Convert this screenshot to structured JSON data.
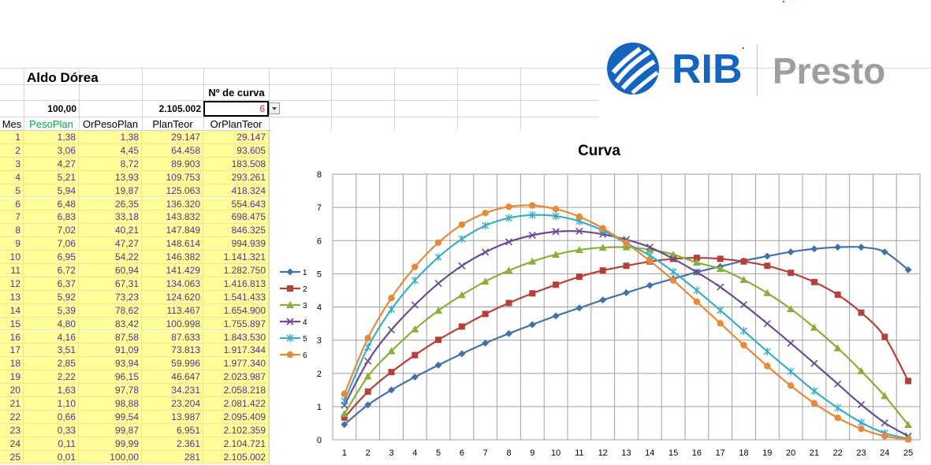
{
  "header": {
    "owner_name": "Aldo Dórea",
    "curve_label": "Nº de curva",
    "total_weight": "100,00",
    "total_plan": "2.105.002",
    "curve_number": "6"
  },
  "logo": {
    "rib": "RIB",
    "presto": "Presto",
    "brand_color": "#1565c0",
    "presto_color": "#9e9e9e"
  },
  "table": {
    "columns": [
      "Mes",
      "PesoPlan",
      "OrPesoPlan",
      "PlanTeor",
      "OrPlanTeor"
    ],
    "rows": [
      [
        "1",
        "1,38",
        "1,38",
        "29.147",
        "29.147"
      ],
      [
        "2",
        "3,06",
        "4,45",
        "64.458",
        "93.605"
      ],
      [
        "3",
        "4,27",
        "8,72",
        "89.903",
        "183.508"
      ],
      [
        "4",
        "5,21",
        "13,93",
        "109.753",
        "293.261"
      ],
      [
        "5",
        "5,94",
        "19,87",
        "125.063",
        "418.324"
      ],
      [
        "6",
        "6,48",
        "26,35",
        "136.320",
        "554.643"
      ],
      [
        "7",
        "6,83",
        "33,18",
        "143.832",
        "698.475"
      ],
      [
        "8",
        "7,02",
        "40,21",
        "147.849",
        "846.325"
      ],
      [
        "9",
        "7,06",
        "47,27",
        "148.614",
        "994.939"
      ],
      [
        "10",
        "6,95",
        "54,22",
        "146.382",
        "1.141.321"
      ],
      [
        "11",
        "6,72",
        "60,94",
        "141.429",
        "1.282.750"
      ],
      [
        "12",
        "6,37",
        "67,31",
        "134.063",
        "1.416.813"
      ],
      [
        "13",
        "5,92",
        "73,23",
        "124.620",
        "1.541.433"
      ],
      [
        "14",
        "5,39",
        "78,62",
        "113.467",
        "1.654.900"
      ],
      [
        "15",
        "4,80",
        "83,42",
        "100.998",
        "1.755.897"
      ],
      [
        "16",
        "4,16",
        "87,58",
        "87.633",
        "1.843.530"
      ],
      [
        "17",
        "3,51",
        "91,09",
        "73.813",
        "1.917.344"
      ],
      [
        "18",
        "2,85",
        "93,94",
        "59.996",
        "1.977.340"
      ],
      [
        "19",
        "2,22",
        "96,15",
        "46.647",
        "2.023.987"
      ],
      [
        "20",
        "1,63",
        "97,78",
        "34.231",
        "2.058.218"
      ],
      [
        "21",
        "1,10",
        "98,88",
        "23.204",
        "2.081.422"
      ],
      [
        "22",
        "0,66",
        "99,54",
        "13.987",
        "2.095.409"
      ],
      [
        "23",
        "0,33",
        "99,87",
        "6.951",
        "2.102.359"
      ],
      [
        "24",
        "0,11",
        "99,99",
        "2.361",
        "2.104.721"
      ],
      [
        "25",
        "0,01",
        "100,00",
        "281",
        "2.105.002"
      ]
    ]
  },
  "chart_data": {
    "type": "line",
    "title": "Curva",
    "x": [
      1,
      2,
      3,
      4,
      5,
      6,
      7,
      8,
      9,
      10,
      11,
      12,
      13,
      14,
      15,
      16,
      17,
      18,
      19,
      20,
      21,
      22,
      23,
      24,
      25
    ],
    "ylim": [
      0,
      8
    ],
    "yticks": [
      0,
      1,
      2,
      3,
      4,
      5,
      6,
      7,
      8
    ],
    "grid": true,
    "legend": "left",
    "series": [
      {
        "name": "1",
        "color": "#4472a8",
        "marker": "diamond",
        "values": [
          0.46,
          1.05,
          1.5,
          1.89,
          2.25,
          2.59,
          2.91,
          3.2,
          3.47,
          3.73,
          3.97,
          4.21,
          4.43,
          4.65,
          4.85,
          5.05,
          5.22,
          5.39,
          5.53,
          5.66,
          5.75,
          5.8,
          5.8,
          5.66,
          5.12
        ]
      },
      {
        "name": "2",
        "color": "#b5403a",
        "marker": "square",
        "values": [
          0.67,
          1.45,
          2.04,
          2.55,
          3.01,
          3.41,
          3.79,
          4.12,
          4.41,
          4.67,
          4.91,
          5.1,
          5.24,
          5.37,
          5.45,
          5.48,
          5.45,
          5.37,
          5.24,
          5.03,
          4.75,
          4.37,
          3.83,
          3.1,
          1.77
        ]
      },
      {
        "name": "3",
        "color": "#8aae3b",
        "marker": "triangle",
        "values": [
          0.78,
          1.91,
          2.67,
          3.33,
          3.89,
          4.36,
          4.77,
          5.1,
          5.37,
          5.58,
          5.72,
          5.79,
          5.8,
          5.73,
          5.58,
          5.34,
          5.15,
          4.82,
          4.42,
          3.94,
          3.38,
          2.76,
          2.07,
          1.32,
          0.45
        ]
      },
      {
        "name": "4",
        "color": "#6b4c8e",
        "marker": "x",
        "values": [
          1.04,
          2.37,
          3.31,
          4.06,
          4.71,
          5.24,
          5.65,
          5.96,
          6.16,
          6.27,
          6.28,
          6.19,
          6.03,
          5.8,
          5.45,
          5.05,
          4.6,
          4.07,
          3.5,
          2.91,
          2.3,
          1.68,
          1.06,
          0.51,
          0.11
        ]
      },
      {
        "name": "5",
        "color": "#3bacc4",
        "marker": "star",
        "values": [
          1.17,
          2.79,
          3.93,
          4.8,
          5.5,
          6.05,
          6.45,
          6.68,
          6.77,
          6.74,
          6.58,
          6.3,
          5.92,
          5.55,
          5.06,
          4.5,
          3.9,
          3.28,
          2.66,
          2.06,
          1.47,
          0.96,
          0.52,
          0.2,
          0.03
        ]
      },
      {
        "name": "6",
        "color": "#e8893a",
        "marker": "circle",
        "values": [
          1.38,
          3.06,
          4.27,
          5.21,
          5.94,
          6.48,
          6.83,
          7.02,
          7.06,
          6.95,
          6.72,
          6.37,
          5.92,
          5.39,
          4.8,
          4.16,
          3.51,
          2.85,
          2.22,
          1.63,
          1.1,
          0.66,
          0.33,
          0.11,
          0.01
        ]
      }
    ]
  }
}
